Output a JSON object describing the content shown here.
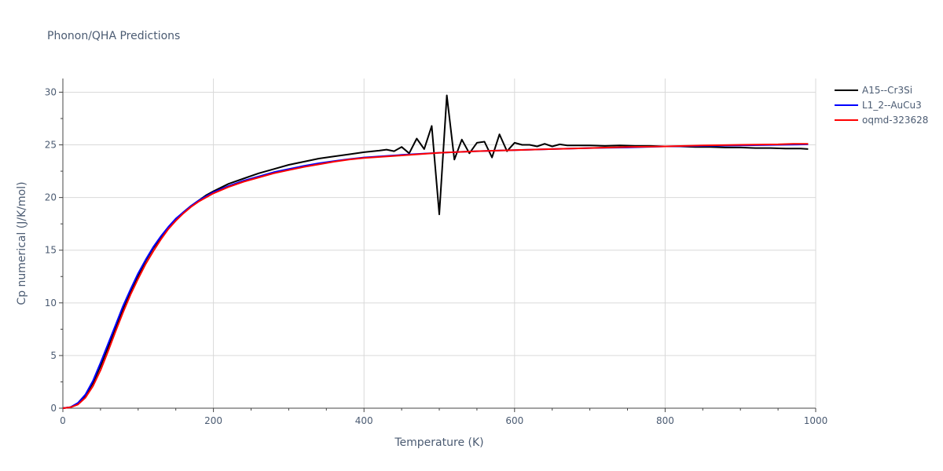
{
  "chart_data": {
    "type": "line",
    "title": "Phonon/QHA Predictions",
    "xlabel": "Temperature (K)",
    "ylabel": "Cp numerical (J/K/mol)",
    "xlim": [
      0,
      1000
    ],
    "ylim": [
      0,
      31.3
    ],
    "xticks": [
      0,
      200,
      400,
      600,
      800,
      1000
    ],
    "yticks": [
      0,
      5,
      10,
      15,
      20,
      25,
      30
    ],
    "grid": true,
    "legend_position": "top-right",
    "series": [
      {
        "name": "A15--Cr3Si",
        "color": "#000000",
        "x": [
          0,
          10,
          20,
          30,
          40,
          50,
          60,
          70,
          80,
          90,
          100,
          110,
          120,
          130,
          140,
          150,
          160,
          170,
          180,
          190,
          200,
          220,
          240,
          260,
          280,
          300,
          320,
          340,
          360,
          380,
          400,
          420,
          430,
          440,
          450,
          460,
          470,
          480,
          490,
          500,
          510,
          520,
          530,
          540,
          550,
          560,
          570,
          580,
          590,
          600,
          610,
          620,
          630,
          640,
          650,
          660,
          670,
          680,
          700,
          720,
          740,
          760,
          780,
          800,
          820,
          840,
          860,
          880,
          900,
          920,
          940,
          960,
          980,
          990
        ],
        "y": [
          0,
          0.1,
          0.4,
          1.2,
          2.4,
          4.0,
          5.8,
          7.6,
          9.4,
          11.1,
          12.6,
          14.0,
          15.2,
          16.2,
          17.1,
          17.9,
          18.6,
          19.2,
          19.7,
          20.2,
          20.6,
          21.3,
          21.8,
          22.3,
          22.7,
          23.1,
          23.4,
          23.7,
          23.9,
          24.1,
          24.3,
          24.45,
          24.55,
          24.4,
          24.8,
          24.2,
          25.6,
          24.6,
          26.8,
          18.4,
          29.7,
          23.6,
          25.5,
          24.2,
          25.2,
          25.3,
          23.8,
          26.0,
          24.4,
          25.2,
          25.0,
          25.0,
          24.85,
          25.1,
          24.85,
          25.05,
          24.95,
          24.95,
          24.95,
          24.9,
          24.95,
          24.9,
          24.9,
          24.85,
          24.85,
          24.8,
          24.8,
          24.75,
          24.75,
          24.7,
          24.7,
          24.65,
          24.65,
          24.6
        ]
      },
      {
        "name": "L1_2--AuCu3",
        "color": "#0000ff",
        "x": [
          0,
          10,
          20,
          30,
          40,
          50,
          60,
          70,
          80,
          90,
          100,
          110,
          120,
          130,
          140,
          150,
          160,
          170,
          180,
          190,
          200,
          220,
          240,
          260,
          280,
          300,
          320,
          340,
          360,
          380,
          400,
          450,
          500,
          550,
          600,
          650,
          700,
          750,
          800,
          850,
          900,
          950,
          990
        ],
        "y": [
          0,
          0.1,
          0.5,
          1.3,
          2.6,
          4.3,
          6.1,
          7.9,
          9.7,
          11.3,
          12.8,
          14.1,
          15.3,
          16.3,
          17.2,
          18.0,
          18.6,
          19.2,
          19.7,
          20.1,
          20.5,
          21.1,
          21.6,
          22.0,
          22.4,
          22.7,
          23.0,
          23.25,
          23.45,
          23.65,
          23.8,
          24.05,
          24.25,
          24.4,
          24.5,
          24.6,
          24.7,
          24.75,
          24.85,
          24.9,
          24.95,
          25.0,
          25.05
        ]
      },
      {
        "name": "oqmd-323628",
        "color": "#ff0000",
        "x": [
          0,
          10,
          20,
          30,
          40,
          50,
          60,
          70,
          80,
          90,
          100,
          110,
          120,
          130,
          140,
          150,
          160,
          170,
          180,
          190,
          200,
          220,
          240,
          260,
          280,
          300,
          320,
          340,
          360,
          380,
          400,
          450,
          500,
          550,
          600,
          650,
          700,
          750,
          800,
          850,
          900,
          950,
          970,
          990
        ],
        "y": [
          0,
          0.08,
          0.35,
          1.0,
          2.1,
          3.6,
          5.4,
          7.3,
          9.1,
          10.8,
          12.3,
          13.7,
          14.9,
          16.0,
          17.0,
          17.8,
          18.5,
          19.1,
          19.6,
          20.0,
          20.4,
          21.0,
          21.5,
          21.9,
          22.3,
          22.6,
          22.9,
          23.15,
          23.4,
          23.6,
          23.75,
          24.0,
          24.25,
          24.4,
          24.5,
          24.6,
          24.7,
          24.8,
          24.85,
          24.95,
          25.0,
          25.05,
          25.1,
          25.1
        ]
      }
    ]
  }
}
